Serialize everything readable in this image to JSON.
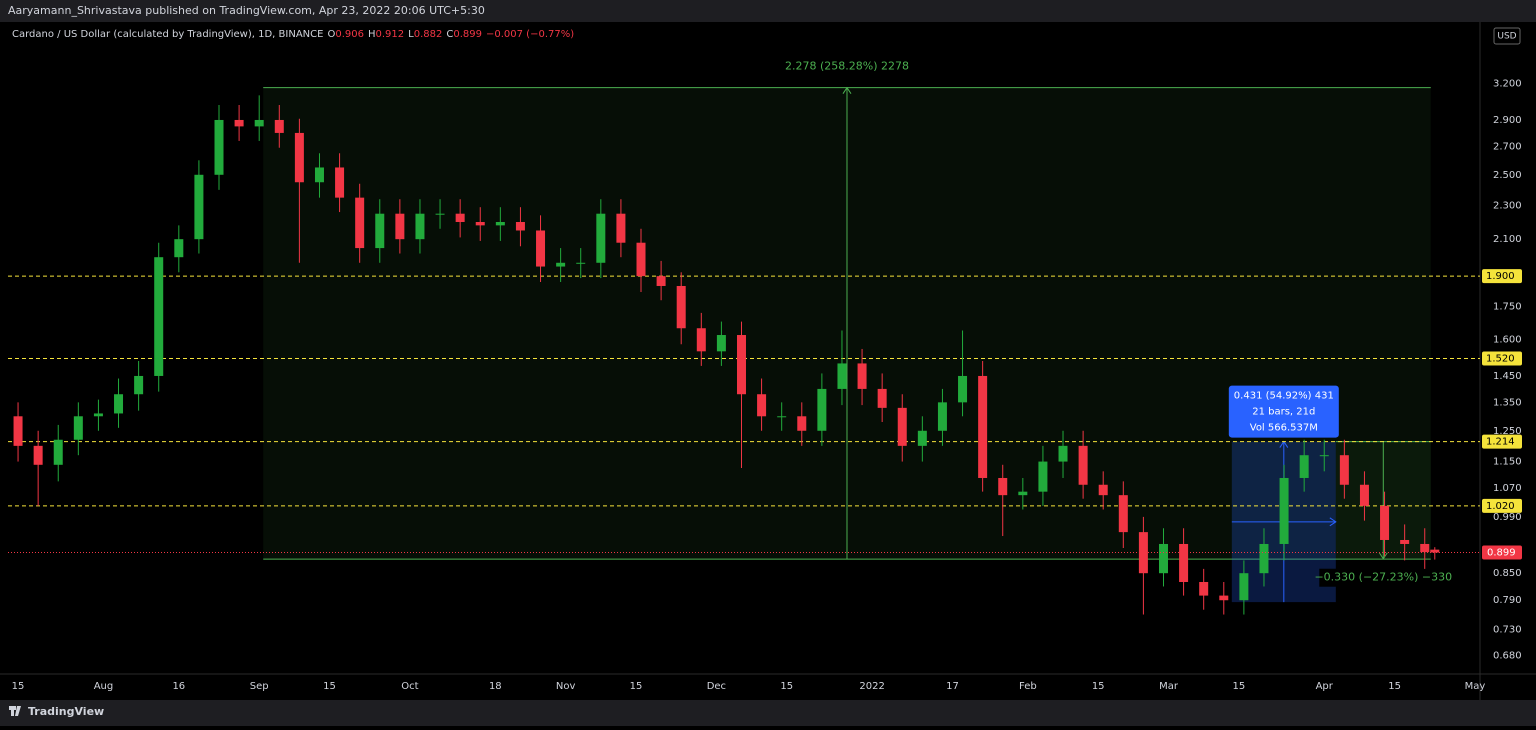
{
  "header": {
    "publisher": "Aaryamann_Shrivastava published on TradingView.com, Apr 23, 2022 20:06 UTC+5:30"
  },
  "footer": {
    "brand": "TradingView"
  },
  "chart_data": {
    "type": "candlestick",
    "title": "Cardano / US Dollar (calculated by TradingView), 1D, BINANCE",
    "ohlc_labels": [
      "O",
      "H",
      "L",
      "C"
    ],
    "change": "−0.007 (−0.77%)",
    "currency": "USD",
    "up_color": "#22ab3c",
    "down_color": "#f23645",
    "log_scale": true,
    "x": [
      0,
      4,
      8,
      12,
      16,
      20,
      24,
      28,
      32,
      36,
      40,
      44,
      48,
      52,
      56,
      60,
      64,
      68,
      72,
      76,
      80,
      84,
      88,
      92,
      96,
      100,
      104,
      108,
      112,
      116,
      120,
      124,
      128,
      132,
      136,
      140,
      144,
      148,
      152,
      156,
      160,
      164,
      168,
      172,
      176,
      180,
      184,
      188,
      192,
      196,
      200,
      204,
      208,
      212,
      216,
      220,
      224,
      228,
      232,
      236,
      240,
      244,
      248,
      252,
      256,
      260,
      264,
      268,
      272,
      276,
      280,
      282
    ],
    "open": [
      1.3,
      1.2,
      1.14,
      1.22,
      1.3,
      1.31,
      1.38,
      1.45,
      2.0,
      2.1,
      2.5,
      2.9,
      2.85,
      2.9,
      2.8,
      2.45,
      2.55,
      2.35,
      2.05,
      2.25,
      2.1,
      2.25,
      2.25,
      2.2,
      2.18,
      2.2,
      2.15,
      1.95,
      1.97,
      1.97,
      2.25,
      2.08,
      1.9,
      1.85,
      1.65,
      1.55,
      1.62,
      1.38,
      1.3,
      1.3,
      1.25,
      1.4,
      1.5,
      1.4,
      1.33,
      1.2,
      1.25,
      1.35,
      1.45,
      1.1,
      1.05,
      1.06,
      1.15,
      1.2,
      1.08,
      1.05,
      0.95,
      0.85,
      0.92,
      0.83,
      0.8,
      0.79,
      0.85,
      0.92,
      1.1,
      1.17,
      1.17,
      1.08,
      1.02,
      0.93,
      0.92,
      0.906
    ],
    "high": [
      1.35,
      1.25,
      1.27,
      1.35,
      1.36,
      1.44,
      1.51,
      2.08,
      2.18,
      2.6,
      3.02,
      3.02,
      3.1,
      3.02,
      2.91,
      2.65,
      2.65,
      2.44,
      2.34,
      2.34,
      2.34,
      2.34,
      2.34,
      2.29,
      2.29,
      2.29,
      2.24,
      2.05,
      2.05,
      2.34,
      2.34,
      2.16,
      1.98,
      1.92,
      1.72,
      1.68,
      1.68,
      1.44,
      1.35,
      1.35,
      1.46,
      1.64,
      1.56,
      1.46,
      1.38,
      1.3,
      1.4,
      1.64,
      1.51,
      1.14,
      1.1,
      1.2,
      1.25,
      1.25,
      1.12,
      1.09,
      0.99,
      0.96,
      0.96,
      0.86,
      0.83,
      0.88,
      0.96,
      1.14,
      1.22,
      1.22,
      1.22,
      1.12,
      1.06,
      0.97,
      0.96,
      0.912
    ],
    "low": [
      1.15,
      1.02,
      1.09,
      1.17,
      1.25,
      1.26,
      1.32,
      1.39,
      1.92,
      2.02,
      2.4,
      2.74,
      2.74,
      2.69,
      1.97,
      2.35,
      2.26,
      1.97,
      1.97,
      2.02,
      2.02,
      2.16,
      2.11,
      2.09,
      2.09,
      2.06,
      1.87,
      1.87,
      1.89,
      1.89,
      2.0,
      1.82,
      1.78,
      1.58,
      1.49,
      1.49,
      1.13,
      1.25,
      1.25,
      1.2,
      1.2,
      1.34,
      1.34,
      1.28,
      1.15,
      1.15,
      1.2,
      1.3,
      1.06,
      0.94,
      1.01,
      1.02,
      1.1,
      1.04,
      1.01,
      0.91,
      0.76,
      0.82,
      0.8,
      0.77,
      0.76,
      0.76,
      0.82,
      0.88,
      1.06,
      1.12,
      1.04,
      0.98,
      0.89,
      0.88,
      0.86,
      0.882
    ],
    "close": [
      1.2,
      1.14,
      1.22,
      1.3,
      1.31,
      1.38,
      1.45,
      2.0,
      2.1,
      2.5,
      2.9,
      2.85,
      2.9,
      2.8,
      2.45,
      2.55,
      2.35,
      2.05,
      2.25,
      2.1,
      2.25,
      2.25,
      2.2,
      2.18,
      2.2,
      2.15,
      1.95,
      1.97,
      1.97,
      2.25,
      2.08,
      1.9,
      1.85,
      1.65,
      1.55,
      1.62,
      1.38,
      1.3,
      1.3,
      1.25,
      1.4,
      1.5,
      1.4,
      1.33,
      1.2,
      1.25,
      1.35,
      1.45,
      1.1,
      1.05,
      1.06,
      1.15,
      1.2,
      1.08,
      1.05,
      0.95,
      0.85,
      0.92,
      0.83,
      0.8,
      0.79,
      0.85,
      0.92,
      1.1,
      1.17,
      1.17,
      1.08,
      1.02,
      0.93,
      0.92,
      0.9,
      0.899
    ],
    "xlim": [
      -2,
      291
    ],
    "xticks": [
      {
        "value": 0,
        "label": "15"
      },
      {
        "value": 17,
        "label": "Aug"
      },
      {
        "value": 32,
        "label": "16"
      },
      {
        "value": 48,
        "label": "Sep"
      },
      {
        "value": 62,
        "label": "15"
      },
      {
        "value": 78,
        "label": "Oct"
      },
      {
        "value": 95,
        "label": "18"
      },
      {
        "value": 109,
        "label": "Nov"
      },
      {
        "value": 123,
        "label": "15"
      },
      {
        "value": 139,
        "label": "Dec"
      },
      {
        "value": 153,
        "label": "15"
      },
      {
        "value": 170,
        "label": "2022"
      },
      {
        "value": 186,
        "label": "17"
      },
      {
        "value": 201,
        "label": "Feb"
      },
      {
        "value": 215,
        "label": "15"
      },
      {
        "value": 229,
        "label": "Mar"
      },
      {
        "value": 243,
        "label": "15"
      },
      {
        "value": 260,
        "label": "Apr"
      },
      {
        "value": 274,
        "label": "15"
      },
      {
        "value": 290,
        "label": "May"
      }
    ],
    "ylim": [
      0.64,
      3.7
    ],
    "yticks": [
      {
        "value": 3.2,
        "label": "3.200"
      },
      {
        "value": 2.9,
        "label": "2.900"
      },
      {
        "value": 2.7,
        "label": "2.700"
      },
      {
        "value": 2.5,
        "label": "2.500"
      },
      {
        "value": 2.3,
        "label": "2.300"
      },
      {
        "value": 2.1,
        "label": "2.100"
      },
      {
        "value": 1.75,
        "label": "1.750"
      },
      {
        "value": 1.6,
        "label": "1.600"
      },
      {
        "value": 1.45,
        "label": "1.450"
      },
      {
        "value": 1.35,
        "label": "1.350"
      },
      {
        "value": 1.25,
        "label": "1.250"
      },
      {
        "value": 1.15,
        "label": "1.150"
      },
      {
        "value": 1.07,
        "label": "1.070"
      },
      {
        "value": 0.99,
        "label": "0.990"
      },
      {
        "value": 0.85,
        "label": "0.850"
      },
      {
        "value": 0.79,
        "label": "0.790"
      },
      {
        "value": 0.73,
        "label": "0.730"
      },
      {
        "value": 0.68,
        "label": "0.680"
      }
    ],
    "level_color": "#f5e33b",
    "levels": [
      {
        "value": 1.9,
        "label": "1.900"
      },
      {
        "value": 1.52,
        "label": "1.520"
      },
      {
        "value": 1.214,
        "label": "1.214"
      },
      {
        "value": 1.02,
        "label": "1.020"
      }
    ],
    "measures": [
      {
        "x": [
          48.8,
          281.2
        ],
        "y": [
          0.883,
          3.165
        ],
        "label": "2.278 (258.28%) 2278",
        "color": "#4caf50"
      },
      {
        "x": [
          241.6,
          262.3
        ],
        "y": [
          0.786,
          1.214
        ],
        "lines": [
          "0.431 (54.92%) 431",
          "21 bars, 21d",
          "Vol 566.537M"
        ],
        "color": "#2962ff"
      },
      {
        "x": [
          262.3,
          281.2
        ],
        "y": [
          0.884,
          1.214
        ],
        "label": "−0.330 (−27.23%) −330",
        "color": "#4caf50"
      }
    ]
  }
}
